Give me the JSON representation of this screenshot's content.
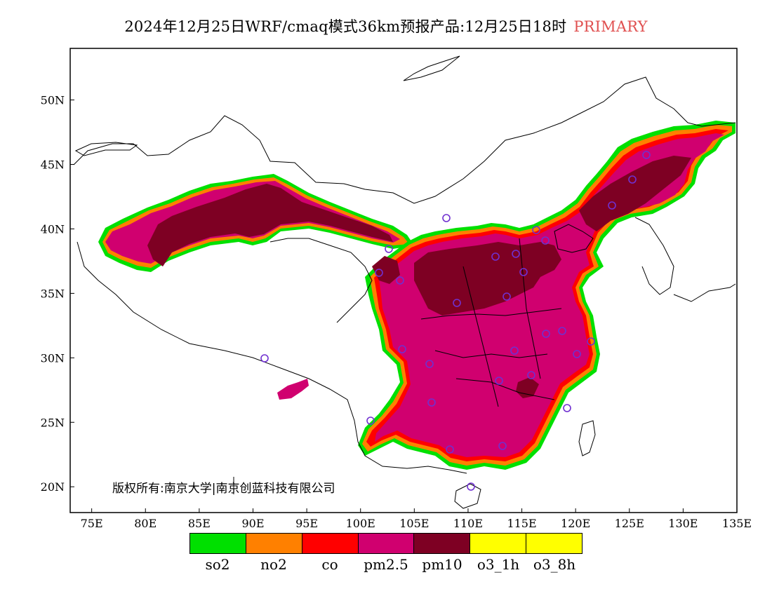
{
  "title": {
    "text": "2024年12月25日WRF/cmaq模式36km预报产品:12月25日18时",
    "tag": "PRIMARY",
    "tag_color": "#e05050"
  },
  "axes": {
    "x_ticks": [
      "75E",
      "80E",
      "85E",
      "90E",
      "95E",
      "100E",
      "105E",
      "110E",
      "115E",
      "120E",
      "125E",
      "130E",
      "135E"
    ],
    "y_ticks": [
      "50N",
      "45N",
      "40N",
      "35N",
      "30N",
      "25N",
      "20N"
    ],
    "x_range_deg": [
      73,
      135
    ],
    "y_range_deg": [
      18,
      54
    ]
  },
  "copyright": "版权所有:南京大学|南京创蓝科技有限公司",
  "legend": {
    "items": [
      {
        "label": "so2",
        "color": "#00e000"
      },
      {
        "label": "no2",
        "color": "#ff8000"
      },
      {
        "label": "co",
        "color": "#ff0000"
      },
      {
        "label": "pm2.5",
        "color": "#d0006f"
      },
      {
        "label": "pm10",
        "color": "#7e0023"
      },
      {
        "label": "o3_1h",
        "color": "#ffff00"
      },
      {
        "label": "o3_8h",
        "color": "#ffff00"
      }
    ]
  },
  "colors": {
    "pm25": "#d0006f",
    "pm10": "#7e0023",
    "co": "#ff0000",
    "no2": "#ff8000",
    "so2": "#00e000",
    "station_marker": "#7030d0"
  }
}
